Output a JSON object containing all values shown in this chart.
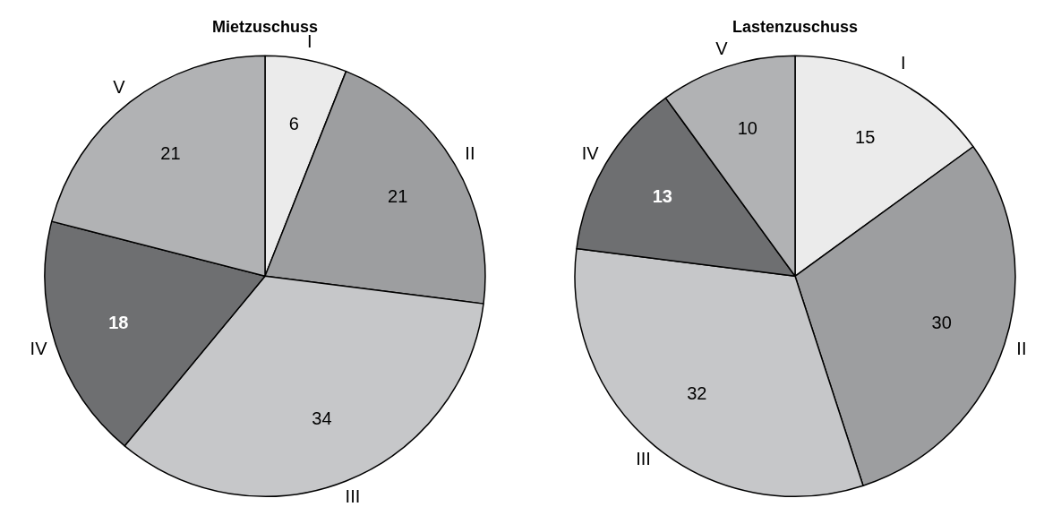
{
  "chart_data": [
    {
      "type": "pie",
      "title": "Mietzuschuss",
      "categories": [
        "I",
        "II",
        "III",
        "IV",
        "V"
      ],
      "values": [
        6,
        21,
        34,
        18,
        21
      ],
      "colors": [
        "#ebebeb",
        "#9d9ea0",
        "#c6c7c9",
        "#6e6f71",
        "#b1b2b4"
      ],
      "data_labels": true,
      "legend": false
    },
    {
      "type": "pie",
      "title": "Lastenzuschuss",
      "categories": [
        "I",
        "II",
        "III",
        "IV",
        "V"
      ],
      "values": [
        15,
        30,
        32,
        13,
        10
      ],
      "colors": [
        "#ebebeb",
        "#9d9ea0",
        "#c6c7c9",
        "#6e6f71",
        "#b1b2b4"
      ],
      "data_labels": true,
      "legend": false
    }
  ]
}
